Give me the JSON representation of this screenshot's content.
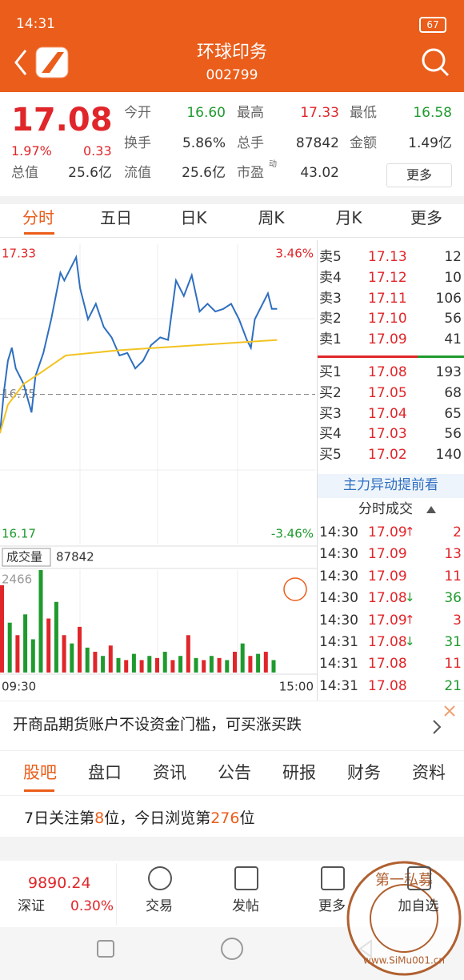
{
  "status_bar": {
    "time": "14:31",
    "battery": "67"
  },
  "header": {
    "name": "环球印务",
    "code": "002799"
  },
  "quote": {
    "price": "17.08",
    "change_pct": "1.97%",
    "change": "0.33",
    "fields": [
      {
        "label": "今开",
        "value": "16.60",
        "color": "#1f9a2e"
      },
      {
        "label": "最高",
        "value": "17.33",
        "color": "#e0262a"
      },
      {
        "label": "最低",
        "value": "16.58",
        "color": "#1f9a2e"
      },
      {
        "label": "换手",
        "value": "5.86%",
        "color": "#333333"
      },
      {
        "label": "总手",
        "value": "87842",
        "color": "#333333"
      },
      {
        "label": "金额",
        "value": "1.49亿",
        "color": "#333333"
      },
      {
        "label": "总值",
        "value": "25.6亿",
        "color": "#333333"
      },
      {
        "label": "流值",
        "value": "25.6亿",
        "color": "#333333"
      },
      {
        "label": "市盈",
        "sup": "动",
        "value": "43.02",
        "color": "#333333"
      }
    ],
    "more": "更多"
  },
  "tabs": [
    "分时",
    "五日",
    "日K",
    "周K",
    "月K",
    "更多"
  ],
  "chart_data": [
    {
      "type": "line",
      "xlim": [
        0,
        240
      ],
      "xticks": [
        {
          "value": 0,
          "label": "09:30"
        },
        {
          "value": 240,
          "label": "15:00"
        }
      ],
      "ylim": [
        16.17,
        17.33
      ],
      "yticks": [
        16.17,
        16.75,
        17.33
      ],
      "y2lim": [
        -3.46,
        3.46
      ],
      "y2ticks": [
        {
          "value": -3.46,
          "label": "-3.46%"
        },
        {
          "value": 3.46,
          "label": "3.46%"
        }
      ],
      "series": [
        {
          "color": "#2e6fc0",
          "x": [
            0,
            3,
            6,
            9,
            12,
            18,
            24,
            27,
            33,
            39,
            46,
            49,
            55,
            58,
            61,
            67,
            73,
            79,
            85,
            91,
            97,
            103,
            109,
            115,
            122,
            128,
            134,
            140,
            146,
            152,
            158,
            164,
            170,
            176,
            182,
            188,
            191,
            194,
            200,
            204,
            207,
            211
          ],
          "values": [
            16.6,
            16.76,
            16.88,
            16.93,
            16.85,
            16.79,
            16.68,
            16.82,
            16.91,
            17.04,
            17.22,
            17.19,
            17.25,
            17.28,
            17.16,
            17.04,
            17.1,
            17.01,
            16.97,
            16.9,
            16.91,
            16.85,
            16.88,
            16.94,
            16.97,
            16.96,
            17.19,
            17.13,
            17.21,
            17.07,
            17.1,
            17.07,
            17.08,
            17.1,
            17.04,
            16.96,
            16.93,
            17.04,
            17.1,
            17.14,
            17.08,
            17.08
          ]
        },
        {
          "color": "#f2c322",
          "x": [
            0,
            6,
            18,
            30,
            50,
            90,
            150,
            211
          ],
          "values": [
            16.6,
            16.71,
            16.79,
            16.83,
            16.9,
            16.92,
            16.94,
            16.96
          ]
        }
      ]
    },
    {
      "type": "bar",
      "title": "成交量",
      "total": "87842",
      "xlim": [
        0,
        240
      ],
      "ylim": [
        0,
        2466
      ],
      "yticks": [
        2466
      ],
      "x": [
        0,
        6,
        12,
        18,
        24,
        30,
        36,
        42,
        48,
        54,
        60,
        66,
        72,
        78,
        84,
        90,
        96,
        102,
        108,
        114,
        120,
        126,
        132,
        138,
        144,
        150,
        156,
        162,
        168,
        174,
        180,
        186,
        192,
        198,
        204,
        210
      ],
      "values": [
        2100,
        1200,
        900,
        1400,
        800,
        2466,
        1300,
        1700,
        900,
        700,
        1100,
        600,
        500,
        400,
        650,
        350,
        300,
        450,
        300,
        400,
        350,
        500,
        300,
        400,
        900,
        350,
        300,
        400,
        350,
        300,
        500,
        700,
        400,
        450,
        500,
        300
      ],
      "colors": [
        "#e0262a",
        "#1f9a2e",
        "#e0262a",
        "#1f9a2e",
        "#1f9a2e",
        "#1f9a2e",
        "#e0262a",
        "#1f9a2e",
        "#e0262a",
        "#1f9a2e",
        "#e0262a",
        "#1f9a2e",
        "#e0262a",
        "#1f9a2e",
        "#e0262a",
        "#1f9a2e",
        "#e0262a",
        "#1f9a2e",
        "#e0262a",
        "#1f9a2e",
        "#e0262a",
        "#1f9a2e",
        "#e0262a",
        "#1f9a2e",
        "#e0262a",
        "#1f9a2e",
        "#e0262a",
        "#1f9a2e",
        "#e0262a",
        "#1f9a2e",
        "#e0262a",
        "#1f9a2e",
        "#e0262a",
        "#1f9a2e",
        "#e0262a",
        "#1f9a2e"
      ]
    }
  ],
  "order_book": {
    "asks": [
      {
        "label": "卖5",
        "price": "17.13",
        "volume": "12"
      },
      {
        "label": "卖4",
        "price": "17.12",
        "volume": "10"
      },
      {
        "label": "卖3",
        "price": "17.11",
        "volume": "106"
      },
      {
        "label": "卖2",
        "price": "17.10",
        "volume": "56"
      },
      {
        "label": "卖1",
        "price": "17.09",
        "volume": "41"
      }
    ],
    "bids": [
      {
        "label": "买1",
        "price": "17.08",
        "volume": "193"
      },
      {
        "label": "买2",
        "price": "17.05",
        "volume": "68"
      },
      {
        "label": "买3",
        "price": "17.04",
        "volume": "65"
      },
      {
        "label": "买4",
        "price": "17.03",
        "volume": "56"
      },
      {
        "label": "买5",
        "price": "17.02",
        "volume": "140"
      }
    ]
  },
  "link": "主力异动提前看",
  "trades_title": "分时成交",
  "trades": [
    {
      "time": "14:30",
      "price": "17.09",
      "arrow": "↑",
      "volume": "2",
      "color": "#e0262a"
    },
    {
      "time": "14:30",
      "price": "17.09",
      "volume": "13",
      "color": "#e0262a"
    },
    {
      "time": "14:30",
      "price": "17.09",
      "volume": "11",
      "color": "#e0262a"
    },
    {
      "time": "14:30",
      "price": "17.08",
      "arrow": "↓",
      "volume": "36",
      "color": "#1f9a2e"
    },
    {
      "time": "14:30",
      "price": "17.09",
      "arrow": "↑",
      "volume": "3",
      "color": "#e0262a"
    },
    {
      "time": "14:31",
      "price": "17.08",
      "arrow": "↓",
      "volume": "31",
      "color": "#1f9a2e"
    },
    {
      "time": "14:31",
      "price": "17.08",
      "volume": "11",
      "color": "#e0262a"
    },
    {
      "time": "14:31",
      "price": "17.08",
      "volume": "21",
      "color": "#1f9a2e"
    }
  ],
  "ad": "开商品期货账户不设资金门槛，可买涨买跌",
  "bottom_tabs": [
    "股吧",
    "盘口",
    "资讯",
    "公告",
    "研报",
    "财务",
    "资料"
  ],
  "rank": [
    "7日关注第",
    "8",
    "位，今日浏览第",
    "276",
    "位"
  ],
  "bottom_bar": {
    "index_value": "9890.24",
    "index_name": "深证",
    "index_change": "0.30%",
    "items": [
      "交易",
      "发帖",
      "更多",
      "加自选"
    ]
  },
  "watermark": {
    "text": "第一私募",
    "url": "www.SiMu001.cn"
  }
}
